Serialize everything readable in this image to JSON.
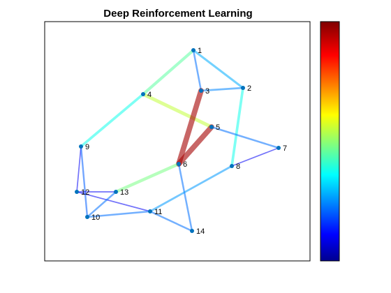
{
  "title": "Deep Reinforcement Learning",
  "graph": {
    "node_color": "#0072BD",
    "nodes": [
      {
        "id": "1"
      },
      {
        "id": "2"
      },
      {
        "id": "3"
      },
      {
        "id": "4"
      },
      {
        "id": "5"
      },
      {
        "id": "6"
      },
      {
        "id": "7"
      },
      {
        "id": "8"
      },
      {
        "id": "9"
      },
      {
        "id": "10"
      },
      {
        "id": "11"
      },
      {
        "id": "12"
      },
      {
        "id": "13"
      },
      {
        "id": "14"
      }
    ],
    "edges": [
      {
        "source": "1",
        "target": "4",
        "weight": 0.45
      },
      {
        "source": "1",
        "target": "2",
        "weight": 0.28
      },
      {
        "source": "1",
        "target": "3",
        "weight": 0.22
      },
      {
        "source": "2",
        "target": "3",
        "weight": 0.24
      },
      {
        "source": "2",
        "target": "8",
        "weight": 0.38
      },
      {
        "source": "4",
        "target": "9",
        "weight": 0.38
      },
      {
        "source": "4",
        "target": "5",
        "weight": 0.55
      },
      {
        "source": "3",
        "target": "6",
        "weight": 0.96
      },
      {
        "source": "5",
        "target": "6",
        "weight": 0.96
      },
      {
        "source": "5",
        "target": "7",
        "weight": 0.22
      },
      {
        "source": "7",
        "target": "8",
        "weight": 0.1
      },
      {
        "source": "6",
        "target": "13",
        "weight": 0.48
      },
      {
        "source": "6",
        "target": "14",
        "weight": 0.22
      },
      {
        "source": "8",
        "target": "11",
        "weight": 0.26
      },
      {
        "source": "9",
        "target": "12",
        "weight": 0.1
      },
      {
        "source": "9",
        "target": "10",
        "weight": 0.2
      },
      {
        "source": "12",
        "target": "13",
        "weight": 0.1
      },
      {
        "source": "12",
        "target": "11",
        "weight": 0.1
      },
      {
        "source": "10",
        "target": "13",
        "weight": 0.22
      },
      {
        "source": "10",
        "target": "11",
        "weight": 0.22
      },
      {
        "source": "11",
        "target": "14",
        "weight": 0.22
      }
    ]
  },
  "colorbar": {
    "colormap": "jet",
    "stops": [
      "#00008F",
      "#0000FF",
      "#00FFFF",
      "#FFFF00",
      "#FF0000",
      "#800000"
    ]
  }
}
